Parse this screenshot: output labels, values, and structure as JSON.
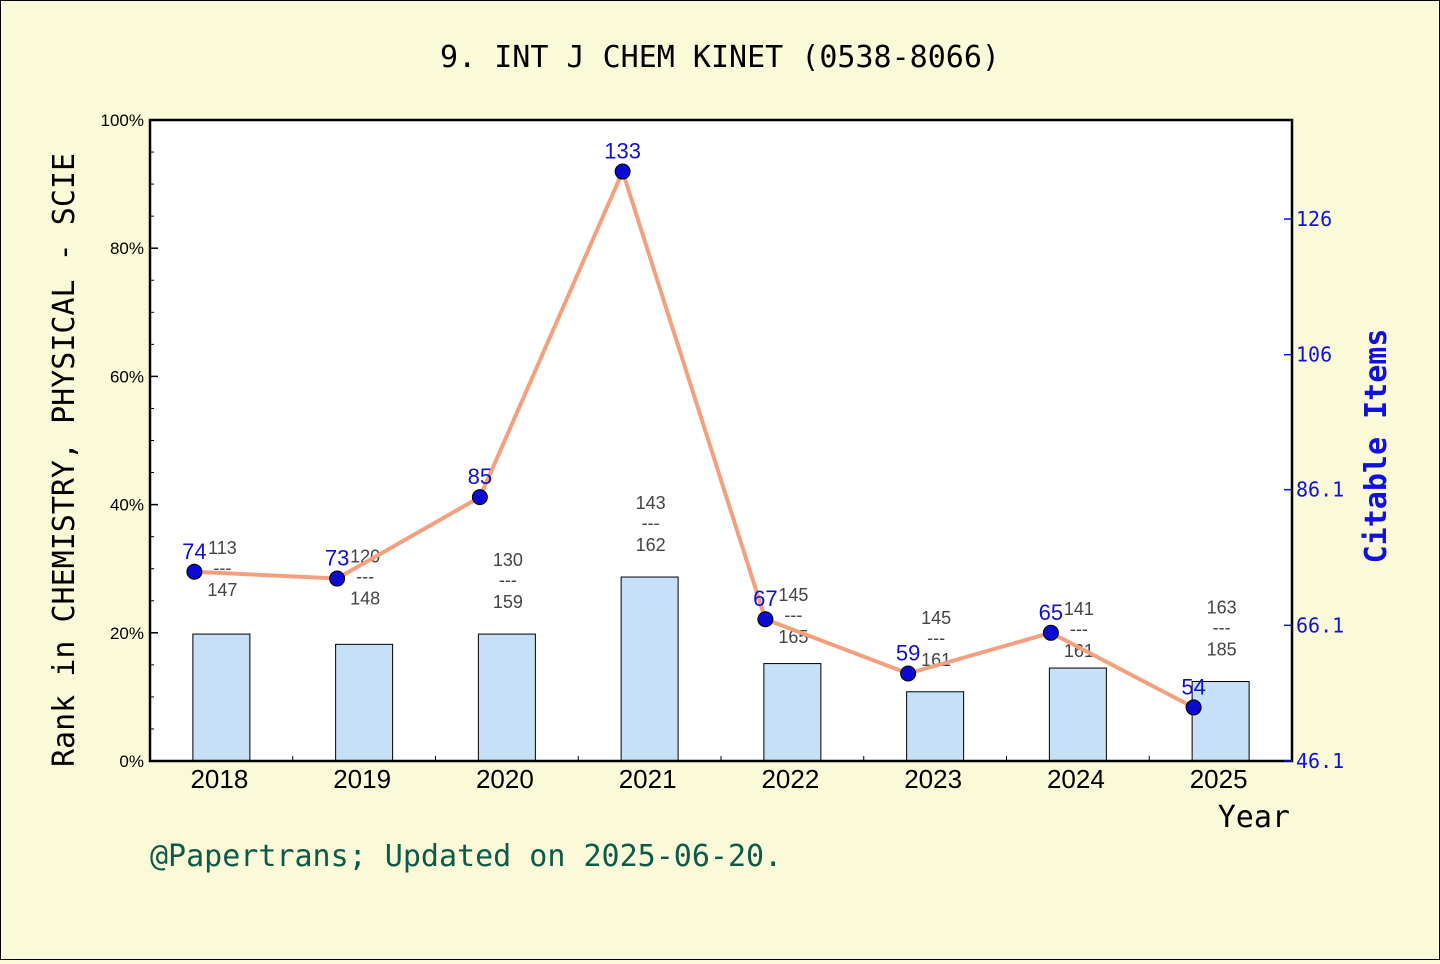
{
  "chart_data": {
    "type": "bar",
    "title": "9. INT J CHEM KINET (0538-8066)",
    "xlabel": "Year",
    "ylabel": "Rank in CHEMISTRY, PHYSICAL - SCIE",
    "y2label": "Citable Items",
    "footer": "@Papertrans; Updated on 2025-06-20.",
    "categories": [
      "2018",
      "2019",
      "2020",
      "2021",
      "2022",
      "2023",
      "2024",
      "2025"
    ],
    "ylim": [
      0,
      100
    ],
    "yticks": [
      "0%",
      "20%",
      "40%",
      "60%",
      "80%",
      "100%"
    ],
    "y2lim": [
      46.1,
      140.6
    ],
    "y2ticks": [
      "46.1",
      "66.1",
      "86.1",
      "106",
      "126"
    ],
    "series": [
      {
        "type": "bar",
        "values": [
          19.8,
          18.2,
          19.8,
          28.7,
          15.2,
          10.8,
          14.5,
          12.4
        ],
        "rank": [
          "113",
          "120",
          "130",
          "143",
          "145",
          "145",
          "141",
          "163"
        ],
        "total": [
          "147",
          "148",
          "159",
          "162",
          "165",
          "161",
          "161",
          "185"
        ],
        "separator": "---",
        "color": "#c6e0f7"
      },
      {
        "type": "line",
        "values": [
          74,
          73,
          85,
          133,
          67,
          59,
          65,
          54
        ],
        "color": "#f4a07e",
        "marker_color": "#0a0ad0",
        "label_color": "#1010c8"
      }
    ],
    "grid": false,
    "legend": "none"
  }
}
